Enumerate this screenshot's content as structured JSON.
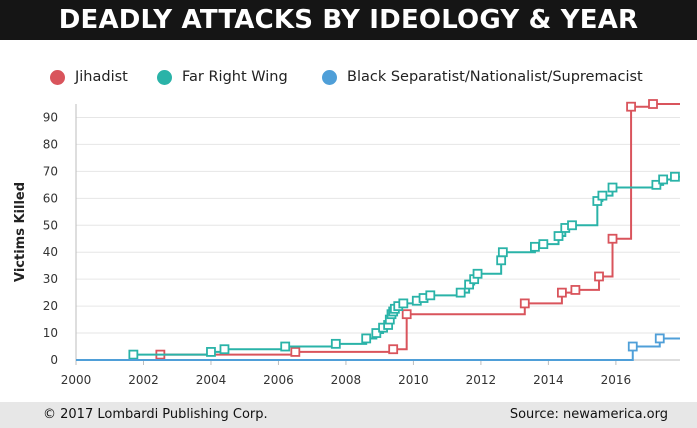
{
  "header": {
    "title": "DEADLY ATTACKS BY IDEOLOGY & YEAR"
  },
  "footer": {
    "copyright": "© 2017 Lombardi Publishing Corp.",
    "source": "Source: newamerica.org"
  },
  "chart_data": {
    "type": "line",
    "title": "DEADLY ATTACKS BY IDEOLOGY & YEAR",
    "xlabel": "",
    "ylabel": "Victims Killed",
    "xlim": [
      2000,
      2017.9
    ],
    "ylim": [
      0,
      95
    ],
    "xticks": [
      2000,
      2002,
      2004,
      2006,
      2008,
      2010,
      2012,
      2014,
      2016
    ],
    "yticks": [
      0,
      10,
      20,
      30,
      40,
      50,
      60,
      70,
      80,
      90
    ],
    "grid": true,
    "step": true,
    "legend_position": "top",
    "series": [
      {
        "name": "Jihadist",
        "color": "#d9545c",
        "points": [
          [
            2002.5,
            2
          ],
          [
            2006.5,
            3
          ],
          [
            2009.4,
            4
          ],
          [
            2009.8,
            17
          ],
          [
            2013.3,
            21
          ],
          [
            2014.4,
            25
          ],
          [
            2014.8,
            26
          ],
          [
            2015.5,
            31
          ],
          [
            2015.9,
            45
          ],
          [
            2016.45,
            94
          ],
          [
            2017.1,
            95
          ]
        ],
        "line_end": 2017.9
      },
      {
        "name": "Far Right Wing",
        "color": "#2ab3a8",
        "points": [
          [
            2001.7,
            2
          ],
          [
            2004.0,
            3
          ],
          [
            2004.4,
            4
          ],
          [
            2006.2,
            5
          ],
          [
            2007.7,
            6
          ],
          [
            2008.6,
            8
          ],
          [
            2008.9,
            10
          ],
          [
            2009.1,
            12
          ],
          [
            2009.25,
            13
          ],
          [
            2009.3,
            15
          ],
          [
            2009.35,
            17
          ],
          [
            2009.4,
            18
          ],
          [
            2009.45,
            19
          ],
          [
            2009.55,
            20
          ],
          [
            2009.7,
            21
          ],
          [
            2010.1,
            22
          ],
          [
            2010.3,
            23
          ],
          [
            2010.5,
            24
          ],
          [
            2011.4,
            25
          ],
          [
            2011.65,
            28
          ],
          [
            2011.8,
            30
          ],
          [
            2011.9,
            32
          ],
          [
            2012.6,
            37
          ],
          [
            2012.65,
            40
          ],
          [
            2013.6,
            42
          ],
          [
            2013.85,
            43
          ],
          [
            2014.3,
            46
          ],
          [
            2014.5,
            49
          ],
          [
            2014.7,
            50
          ],
          [
            2015.45,
            59
          ],
          [
            2015.6,
            61
          ],
          [
            2015.9,
            64
          ],
          [
            2017.2,
            65
          ],
          [
            2017.4,
            67
          ],
          [
            2017.75,
            68
          ]
        ],
        "line_end": 2017.9
      },
      {
        "name": "Black Separatist/Nationalist/Supremacist",
        "color": "#4f9fd8",
        "points": [
          [
            2016.5,
            5
          ],
          [
            2017.3,
            8
          ]
        ],
        "line_end": 2017.9
      }
    ]
  }
}
